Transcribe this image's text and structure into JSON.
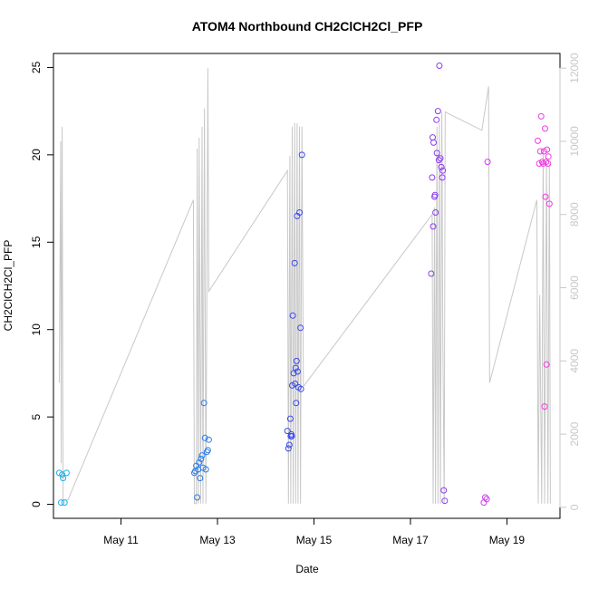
{
  "chart_data": {
    "type": "scatter",
    "title": "ATOM4 Northbound CH2ClCH2Cl_PFP",
    "xlabel": "Date",
    "ylabel": "CH2ClCH2Cl_PFP",
    "x_ticks": [
      "May 11",
      "May 13",
      "May 15",
      "May 17",
      "May 19"
    ],
    "x_tick_days": [
      11,
      13,
      15,
      17,
      19
    ],
    "xlim": [
      9.6,
      20.1
    ],
    "ylim": [
      -0.8,
      25.8
    ],
    "y_ticks": [
      0,
      5,
      10,
      15,
      20,
      25
    ],
    "y2lim": [
      -300,
      12400
    ],
    "y2_ticks": [
      0,
      2000,
      4000,
      6000,
      8000,
      10000,
      12000
    ],
    "grid": false,
    "legend": "none",
    "line_color": "#c8c8c8",
    "marker": "open-circle",
    "points": [
      {
        "x": 9.72,
        "y": 1.8,
        "color": "#1fb0e8"
      },
      {
        "x": 9.76,
        "y": 0.1,
        "color": "#1fb0e8"
      },
      {
        "x": 9.78,
        "y": 1.7,
        "color": "#1fb0e8"
      },
      {
        "x": 9.8,
        "y": 1.5,
        "color": "#1fb0e8"
      },
      {
        "x": 9.83,
        "y": 0.1,
        "color": "#1fb0e8"
      },
      {
        "x": 9.87,
        "y": 1.8,
        "color": "#1fb0e8"
      },
      {
        "x": 12.52,
        "y": 1.8,
        "color": "#2a7ee8"
      },
      {
        "x": 12.54,
        "y": 1.9,
        "color": "#2a7ee8"
      },
      {
        "x": 12.56,
        "y": 2.2,
        "color": "#2a7ee8"
      },
      {
        "x": 12.58,
        "y": 0.4,
        "color": "#2a7ee8"
      },
      {
        "x": 12.6,
        "y": 2.0,
        "color": "#2a7ee8"
      },
      {
        "x": 12.62,
        "y": 2.4,
        "color": "#2a7ee8"
      },
      {
        "x": 12.64,
        "y": 1.5,
        "color": "#2a7ee8"
      },
      {
        "x": 12.66,
        "y": 2.6,
        "color": "#2a7ee8"
      },
      {
        "x": 12.68,
        "y": 2.8,
        "color": "#2a7ee8"
      },
      {
        "x": 12.7,
        "y": 2.1,
        "color": "#2a7ee8"
      },
      {
        "x": 12.72,
        "y": 5.8,
        "color": "#2a7ee8"
      },
      {
        "x": 12.74,
        "y": 3.8,
        "color": "#2a7ee8"
      },
      {
        "x": 12.76,
        "y": 2.0,
        "color": "#2a7ee8"
      },
      {
        "x": 12.78,
        "y": 3.0,
        "color": "#2a7ee8"
      },
      {
        "x": 12.8,
        "y": 3.1,
        "color": "#2a7ee8"
      },
      {
        "x": 12.82,
        "y": 3.7,
        "color": "#2a7ee8"
      },
      {
        "x": 14.45,
        "y": 4.2,
        "color": "#3a48ec"
      },
      {
        "x": 14.47,
        "y": 3.2,
        "color": "#3a48ec"
      },
      {
        "x": 14.49,
        "y": 3.4,
        "color": "#3a48ec"
      },
      {
        "x": 14.51,
        "y": 4.9,
        "color": "#3a48ec"
      },
      {
        "x": 14.52,
        "y": 3.9,
        "color": "#3a48ec"
      },
      {
        "x": 14.53,
        "y": 4.0,
        "color": "#3a48ec"
      },
      {
        "x": 14.54,
        "y": 3.9,
        "color": "#3a48ec"
      },
      {
        "x": 14.55,
        "y": 6.8,
        "color": "#3a48ec"
      },
      {
        "x": 14.56,
        "y": 10.8,
        "color": "#3a48ec"
      },
      {
        "x": 14.58,
        "y": 7.5,
        "color": "#3a48ec"
      },
      {
        "x": 14.6,
        "y": 13.8,
        "color": "#3a48ec"
      },
      {
        "x": 14.61,
        "y": 6.9,
        "color": "#3a48ec"
      },
      {
        "x": 14.62,
        "y": 7.8,
        "color": "#3a48ec"
      },
      {
        "x": 14.63,
        "y": 5.8,
        "color": "#3a48ec"
      },
      {
        "x": 14.64,
        "y": 8.2,
        "color": "#3a48ec"
      },
      {
        "x": 14.65,
        "y": 16.5,
        "color": "#3a48ec"
      },
      {
        "x": 14.66,
        "y": 7.6,
        "color": "#3a48ec"
      },
      {
        "x": 14.68,
        "y": 6.7,
        "color": "#3a48ec"
      },
      {
        "x": 14.7,
        "y": 16.7,
        "color": "#3a48ec"
      },
      {
        "x": 14.72,
        "y": 10.1,
        "color": "#3a48ec"
      },
      {
        "x": 14.73,
        "y": 6.6,
        "color": "#3a48ec"
      },
      {
        "x": 14.75,
        "y": 20.0,
        "color": "#3a48ec"
      },
      {
        "x": 17.43,
        "y": 13.2,
        "color": "#8a3cf0"
      },
      {
        "x": 17.45,
        "y": 18.7,
        "color": "#8a3cf0"
      },
      {
        "x": 17.46,
        "y": 21.0,
        "color": "#8a3cf0"
      },
      {
        "x": 17.47,
        "y": 15.9,
        "color": "#8a3cf0"
      },
      {
        "x": 17.48,
        "y": 20.7,
        "color": "#8a3cf0"
      },
      {
        "x": 17.5,
        "y": 17.6,
        "color": "#8a3cf0"
      },
      {
        "x": 17.51,
        "y": 17.7,
        "color": "#8a3cf0"
      },
      {
        "x": 17.52,
        "y": 16.7,
        "color": "#8a3cf0"
      },
      {
        "x": 17.54,
        "y": 22.0,
        "color": "#8a3cf0"
      },
      {
        "x": 17.55,
        "y": 20.1,
        "color": "#8a3cf0"
      },
      {
        "x": 17.57,
        "y": 22.5,
        "color": "#8a3cf0"
      },
      {
        "x": 17.59,
        "y": 19.7,
        "color": "#8a3cf0"
      },
      {
        "x": 17.6,
        "y": 25.1,
        "color": "#8a3cf0"
      },
      {
        "x": 17.62,
        "y": 19.8,
        "color": "#8a3cf0"
      },
      {
        "x": 17.64,
        "y": 19.3,
        "color": "#8a3cf0"
      },
      {
        "x": 17.66,
        "y": 18.7,
        "color": "#8a3cf0"
      },
      {
        "x": 17.67,
        "y": 19.1,
        "color": "#8a3cf0"
      },
      {
        "x": 17.69,
        "y": 0.8,
        "color": "#8a3cf0"
      },
      {
        "x": 17.71,
        "y": 0.2,
        "color": "#8a3cf0"
      },
      {
        "x": 18.52,
        "y": 0.1,
        "color": "#d03cf0"
      },
      {
        "x": 18.55,
        "y": 0.4,
        "color": "#d03cf0"
      },
      {
        "x": 18.58,
        "y": 0.3,
        "color": "#d03cf0"
      },
      {
        "x": 18.6,
        "y": 19.6,
        "color": "#d03cf0"
      },
      {
        "x": 19.64,
        "y": 20.8,
        "color": "#f03ce0"
      },
      {
        "x": 19.67,
        "y": 19.5,
        "color": "#f03ce0"
      },
      {
        "x": 19.69,
        "y": 20.2,
        "color": "#f03ce0"
      },
      {
        "x": 19.71,
        "y": 22.2,
        "color": "#f03ce0"
      },
      {
        "x": 19.73,
        "y": 19.6,
        "color": "#f03ce0"
      },
      {
        "x": 19.75,
        "y": 19.5,
        "color": "#f03ce0"
      },
      {
        "x": 19.77,
        "y": 20.2,
        "color": "#f03ce0"
      },
      {
        "x": 19.78,
        "y": 5.6,
        "color": "#f03ce0"
      },
      {
        "x": 19.79,
        "y": 21.5,
        "color": "#f03ce0"
      },
      {
        "x": 19.8,
        "y": 17.6,
        "color": "#f03ce0"
      },
      {
        "x": 19.81,
        "y": 19.6,
        "color": "#f03ce0"
      },
      {
        "x": 19.82,
        "y": 8.0,
        "color": "#f03ce0"
      },
      {
        "x": 19.83,
        "y": 20.3,
        "color": "#f03ce0"
      },
      {
        "x": 19.85,
        "y": 19.5,
        "color": "#f03ce0"
      },
      {
        "x": 19.86,
        "y": 19.9,
        "color": "#f03ce0"
      },
      {
        "x": 19.88,
        "y": 17.2,
        "color": "#f03ce0"
      }
    ],
    "right_axis_line": [
      [
        9.72,
        3400
      ],
      [
        9.75,
        10000
      ],
      [
        9.76,
        1200
      ],
      [
        9.78,
        10400
      ],
      [
        9.8,
        200
      ],
      [
        9.85,
        200
      ],
      [
        9.9,
        200
      ],
      [
        12.5,
        8400
      ],
      [
        12.52,
        100
      ],
      [
        12.56,
        100
      ],
      [
        12.58,
        9800
      ],
      [
        12.6,
        100
      ],
      [
        12.62,
        10100
      ],
      [
        12.65,
        100
      ],
      [
        12.68,
        10400
      ],
      [
        12.7,
        100
      ],
      [
        12.73,
        10900
      ],
      [
        12.76,
        100
      ],
      [
        12.8,
        12000
      ],
      [
        12.82,
        5900
      ],
      [
        14.45,
        9200
      ],
      [
        14.47,
        100
      ],
      [
        14.5,
        9600
      ],
      [
        14.52,
        100
      ],
      [
        14.55,
        10400
      ],
      [
        14.57,
        100
      ],
      [
        14.6,
        10500
      ],
      [
        14.62,
        100
      ],
      [
        14.65,
        10500
      ],
      [
        14.67,
        100
      ],
      [
        14.7,
        10400
      ],
      [
        14.72,
        100
      ],
      [
        14.75,
        10400
      ],
      [
        14.78,
        3300
      ],
      [
        17.45,
        8000
      ],
      [
        17.47,
        100
      ],
      [
        17.5,
        8200
      ],
      [
        17.52,
        100
      ],
      [
        17.55,
        10400
      ],
      [
        17.57,
        100
      ],
      [
        17.6,
        10500
      ],
      [
        17.62,
        100
      ],
      [
        17.65,
        10800
      ],
      [
        17.67,
        5000
      ],
      [
        17.7,
        100
      ],
      [
        17.72,
        10800
      ],
      [
        18.48,
        10300
      ],
      [
        18.62,
        11500
      ],
      [
        18.64,
        3400
      ],
      [
        19.62,
        8400
      ],
      [
        19.65,
        100
      ],
      [
        19.68,
        5800
      ],
      [
        19.72,
        100
      ],
      [
        19.75,
        9800
      ],
      [
        19.78,
        100
      ],
      [
        19.82,
        9500
      ],
      [
        19.85,
        100
      ],
      [
        19.88,
        9400
      ],
      [
        19.9,
        100
      ]
    ]
  }
}
